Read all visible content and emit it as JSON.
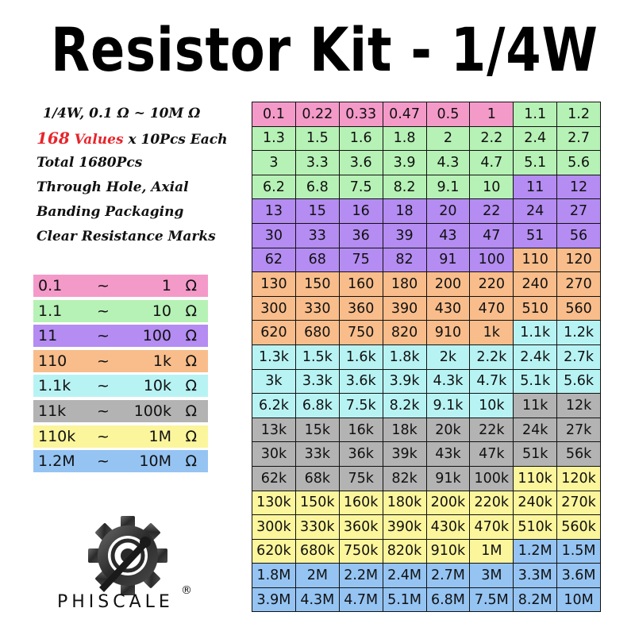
{
  "title": "Resistor Kit - 1/4W",
  "specs": {
    "line1": "1/4W, 0.1 Ω ~ 10M Ω",
    "values_count": "168",
    "values_word": "Values",
    "each": " x 10Pcs Each",
    "line3": "Total 1680Pcs",
    "line4": "Through Hole, Axial",
    "line5": "Banding Packaging",
    "line6": "Clear Resistance Marks"
  },
  "colors": {
    "pink": "#f49ac9",
    "green": "#b6f1b5",
    "purple": "#b48cf2",
    "orange": "#f8bd8b",
    "cyan": "#b8f3f4",
    "gray": "#b3b3b3",
    "yellow": "#fbf59c",
    "blue": "#95c4f3"
  },
  "legend": [
    {
      "low": "0.1",
      "sep": "~",
      "high": "1",
      "unit": "Ω",
      "color": "pink"
    },
    {
      "low": "1.1",
      "sep": "~",
      "high": "10",
      "unit": "Ω",
      "color": "green"
    },
    {
      "low": "11",
      "sep": "~",
      "high": "100",
      "unit": "Ω",
      "color": "purple"
    },
    {
      "low": "110",
      "sep": "~",
      "high": "1k",
      "unit": "Ω",
      "color": "orange"
    },
    {
      "low": "1.1k",
      "sep": "~",
      "high": "10k",
      "unit": "Ω",
      "color": "cyan"
    },
    {
      "low": "11k",
      "sep": "~",
      "high": "100k",
      "unit": "Ω",
      "color": "gray"
    },
    {
      "low": "110k",
      "sep": "~",
      "high": "1M",
      "unit": "Ω",
      "color": "yellow"
    },
    {
      "low": "1.2M",
      "sep": "~",
      "high": "10M",
      "unit": "Ω",
      "color": "blue"
    }
  ],
  "grid": [
    [
      [
        "0.1",
        "pink"
      ],
      [
        "0.22",
        "pink"
      ],
      [
        "0.33",
        "pink"
      ],
      [
        "0.47",
        "pink"
      ],
      [
        "0.5",
        "pink"
      ],
      [
        "1",
        "pink"
      ],
      [
        "1.1",
        "green"
      ],
      [
        "1.2",
        "green"
      ]
    ],
    [
      [
        "1.3",
        "green"
      ],
      [
        "1.5",
        "green"
      ],
      [
        "1.6",
        "green"
      ],
      [
        "1.8",
        "green"
      ],
      [
        "2",
        "green"
      ],
      [
        "2.2",
        "green"
      ],
      [
        "2.4",
        "green"
      ],
      [
        "2.7",
        "green"
      ]
    ],
    [
      [
        "3",
        "green"
      ],
      [
        "3.3",
        "green"
      ],
      [
        "3.6",
        "green"
      ],
      [
        "3.9",
        "green"
      ],
      [
        "4.3",
        "green"
      ],
      [
        "4.7",
        "green"
      ],
      [
        "5.1",
        "green"
      ],
      [
        "5.6",
        "green"
      ]
    ],
    [
      [
        "6.2",
        "green"
      ],
      [
        "6.8",
        "green"
      ],
      [
        "7.5",
        "green"
      ],
      [
        "8.2",
        "green"
      ],
      [
        "9.1",
        "green"
      ],
      [
        "10",
        "green"
      ],
      [
        "11",
        "purple"
      ],
      [
        "12",
        "purple"
      ]
    ],
    [
      [
        "13",
        "purple"
      ],
      [
        "15",
        "purple"
      ],
      [
        "16",
        "purple"
      ],
      [
        "18",
        "purple"
      ],
      [
        "20",
        "purple"
      ],
      [
        "22",
        "purple"
      ],
      [
        "24",
        "purple"
      ],
      [
        "27",
        "purple"
      ]
    ],
    [
      [
        "30",
        "purple"
      ],
      [
        "33",
        "purple"
      ],
      [
        "36",
        "purple"
      ],
      [
        "39",
        "purple"
      ],
      [
        "43",
        "purple"
      ],
      [
        "47",
        "purple"
      ],
      [
        "51",
        "purple"
      ],
      [
        "56",
        "purple"
      ]
    ],
    [
      [
        "62",
        "purple"
      ],
      [
        "68",
        "purple"
      ],
      [
        "75",
        "purple"
      ],
      [
        "82",
        "purple"
      ],
      [
        "91",
        "purple"
      ],
      [
        "100",
        "purple"
      ],
      [
        "110",
        "orange"
      ],
      [
        "120",
        "orange"
      ]
    ],
    [
      [
        "130",
        "orange"
      ],
      [
        "150",
        "orange"
      ],
      [
        "160",
        "orange"
      ],
      [
        "180",
        "orange"
      ],
      [
        "200",
        "orange"
      ],
      [
        "220",
        "orange"
      ],
      [
        "240",
        "orange"
      ],
      [
        "270",
        "orange"
      ]
    ],
    [
      [
        "300",
        "orange"
      ],
      [
        "330",
        "orange"
      ],
      [
        "360",
        "orange"
      ],
      [
        "390",
        "orange"
      ],
      [
        "430",
        "orange"
      ],
      [
        "470",
        "orange"
      ],
      [
        "510",
        "orange"
      ],
      [
        "560",
        "orange"
      ]
    ],
    [
      [
        "620",
        "orange"
      ],
      [
        "680",
        "orange"
      ],
      [
        "750",
        "orange"
      ],
      [
        "820",
        "orange"
      ],
      [
        "910",
        "orange"
      ],
      [
        "1k",
        "orange"
      ],
      [
        "1.1k",
        "cyan"
      ],
      [
        "1.2k",
        "cyan"
      ]
    ],
    [
      [
        "1.3k",
        "cyan"
      ],
      [
        "1.5k",
        "cyan"
      ],
      [
        "1.6k",
        "cyan"
      ],
      [
        "1.8k",
        "cyan"
      ],
      [
        "2k",
        "cyan"
      ],
      [
        "2.2k",
        "cyan"
      ],
      [
        "2.4k",
        "cyan"
      ],
      [
        "2.7k",
        "cyan"
      ]
    ],
    [
      [
        "3k",
        "cyan"
      ],
      [
        "3.3k",
        "cyan"
      ],
      [
        "3.6k",
        "cyan"
      ],
      [
        "3.9k",
        "cyan"
      ],
      [
        "4.3k",
        "cyan"
      ],
      [
        "4.7k",
        "cyan"
      ],
      [
        "5.1k",
        "cyan"
      ],
      [
        "5.6k",
        "cyan"
      ]
    ],
    [
      [
        "6.2k",
        "cyan"
      ],
      [
        "6.8k",
        "cyan"
      ],
      [
        "7.5k",
        "cyan"
      ],
      [
        "8.2k",
        "cyan"
      ],
      [
        "9.1k",
        "cyan"
      ],
      [
        "10k",
        "cyan"
      ],
      [
        "11k",
        "gray"
      ],
      [
        "12k",
        "gray"
      ]
    ],
    [
      [
        "13k",
        "gray"
      ],
      [
        "15k",
        "gray"
      ],
      [
        "16k",
        "gray"
      ],
      [
        "18k",
        "gray"
      ],
      [
        "20k",
        "gray"
      ],
      [
        "22k",
        "gray"
      ],
      [
        "24k",
        "gray"
      ],
      [
        "27k",
        "gray"
      ]
    ],
    [
      [
        "30k",
        "gray"
      ],
      [
        "33k",
        "gray"
      ],
      [
        "36k",
        "gray"
      ],
      [
        "39k",
        "gray"
      ],
      [
        "43k",
        "gray"
      ],
      [
        "47k",
        "gray"
      ],
      [
        "51k",
        "gray"
      ],
      [
        "56k",
        "gray"
      ]
    ],
    [
      [
        "62k",
        "gray"
      ],
      [
        "68k",
        "gray"
      ],
      [
        "75k",
        "gray"
      ],
      [
        "82k",
        "gray"
      ],
      [
        "91k",
        "gray"
      ],
      [
        "100k",
        "gray"
      ],
      [
        "110k",
        "yellow"
      ],
      [
        "120k",
        "yellow"
      ]
    ],
    [
      [
        "130k",
        "yellow"
      ],
      [
        "150k",
        "yellow"
      ],
      [
        "160k",
        "yellow"
      ],
      [
        "180k",
        "yellow"
      ],
      [
        "200k",
        "yellow"
      ],
      [
        "220k",
        "yellow"
      ],
      [
        "240k",
        "yellow"
      ],
      [
        "270k",
        "yellow"
      ]
    ],
    [
      [
        "300k",
        "yellow"
      ],
      [
        "330k",
        "yellow"
      ],
      [
        "360k",
        "yellow"
      ],
      [
        "390k",
        "yellow"
      ],
      [
        "430k",
        "yellow"
      ],
      [
        "470k",
        "yellow"
      ],
      [
        "510k",
        "yellow"
      ],
      [
        "560k",
        "yellow"
      ]
    ],
    [
      [
        "620k",
        "yellow"
      ],
      [
        "680k",
        "yellow"
      ],
      [
        "750k",
        "yellow"
      ],
      [
        "820k",
        "yellow"
      ],
      [
        "910k",
        "yellow"
      ],
      [
        "1M",
        "yellow"
      ],
      [
        "1.2M",
        "blue"
      ],
      [
        "1.5M",
        "blue"
      ]
    ],
    [
      [
        "1.8M",
        "blue"
      ],
      [
        "2M",
        "blue"
      ],
      [
        "2.2M",
        "blue"
      ],
      [
        "2.4M",
        "blue"
      ],
      [
        "2.7M",
        "blue"
      ],
      [
        "3M",
        "blue"
      ],
      [
        "3.3M",
        "blue"
      ],
      [
        "3.6M",
        "blue"
      ]
    ],
    [
      [
        "3.9M",
        "blue"
      ],
      [
        "4.3M",
        "blue"
      ],
      [
        "4.7M",
        "blue"
      ],
      [
        "5.1M",
        "blue"
      ],
      [
        "6.8M",
        "blue"
      ],
      [
        "7.5M",
        "blue"
      ],
      [
        "8.2M",
        "blue"
      ],
      [
        "10M",
        "blue"
      ]
    ]
  ],
  "logo": {
    "icon": "gear-wrench-logo",
    "text": "PHISCALE",
    "registered": "®"
  }
}
